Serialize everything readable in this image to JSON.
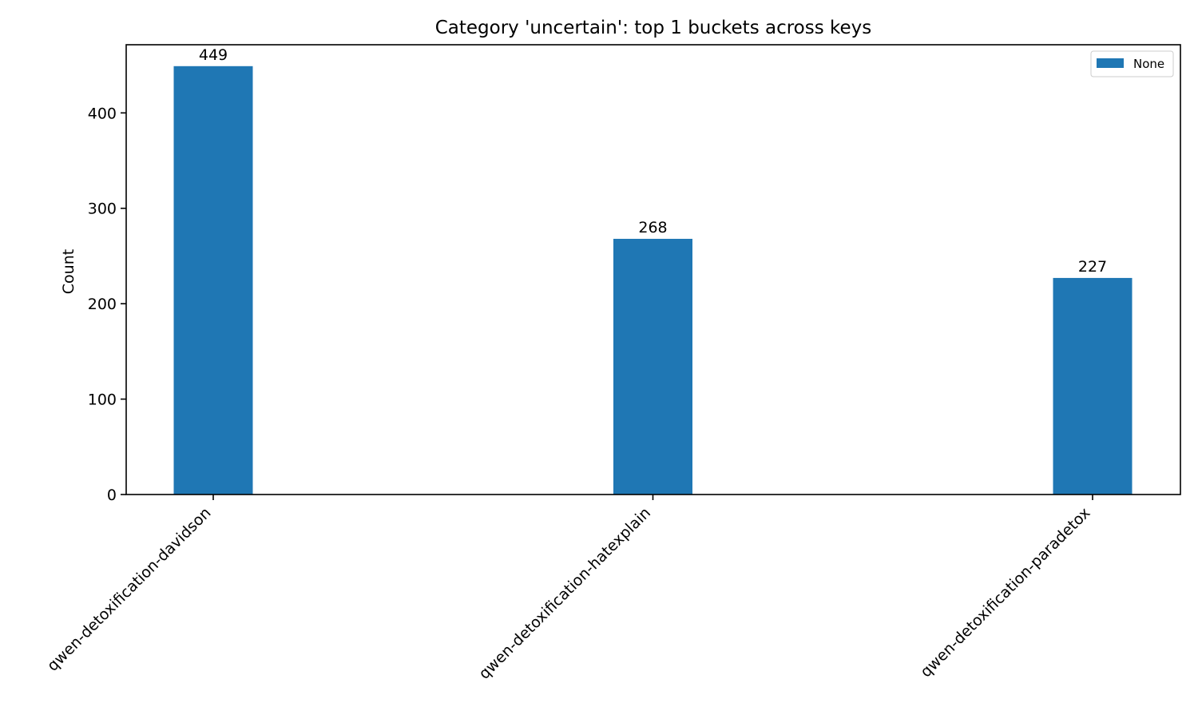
{
  "chart_data": {
    "type": "bar",
    "title": "Category 'uncertain': top 1 buckets across keys",
    "xlabel": "",
    "ylabel": "Count",
    "categories": [
      "qwen-detoxification-davidson",
      "qwen-detoxification-hatexplain",
      "qwen-detoxification-paradetox"
    ],
    "series": [
      {
        "name": "None",
        "color": "#1f77b4",
        "values": [
          449,
          268,
          227
        ]
      }
    ],
    "data_labels": [
      "449",
      "268",
      "227"
    ],
    "ylim": [
      0,
      471.45
    ],
    "yticks": [
      0,
      100,
      200,
      300,
      400
    ],
    "ytick_labels": [
      "0",
      "100",
      "200",
      "300",
      "400"
    ],
    "grid": false,
    "legend_position": "top-right"
  }
}
